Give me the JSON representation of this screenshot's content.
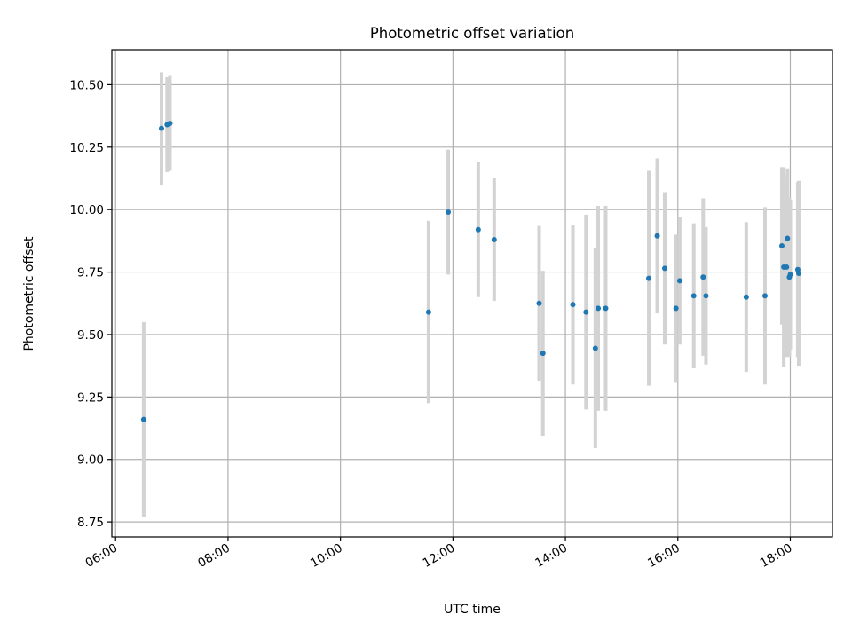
{
  "chart_data": {
    "type": "scatter",
    "title": "Photometric offset variation",
    "xlabel": "UTC time",
    "ylabel": "Photometric offset",
    "x_axis_type": "time",
    "xlim": [
      "05:56",
      "18:45"
    ],
    "ylim": [
      8.69,
      10.64
    ],
    "xticks": [
      "06:00",
      "08:00",
      "10:00",
      "12:00",
      "14:00",
      "16:00",
      "18:00"
    ],
    "yticks": [
      8.75,
      9.0,
      9.25,
      9.5,
      9.75,
      10.0,
      10.25,
      10.5
    ],
    "ytick_labels": [
      "8.75",
      "9.00",
      "9.25",
      "9.50",
      "9.75",
      "10.00",
      "10.25",
      "10.50"
    ],
    "grid": true,
    "marker_color": "#1f77b4",
    "errorbar_color": "#d3d3d3",
    "points": [
      {
        "t": "06:30",
        "y": 9.16,
        "err": 0.39
      },
      {
        "t": "06:49",
        "y": 10.325,
        "err": 0.225
      },
      {
        "t": "06:55",
        "y": 10.34,
        "err": 0.19
      },
      {
        "t": "06:58",
        "y": 10.345,
        "err": 0.19
      },
      {
        "t": "11:34",
        "y": 9.59,
        "err": 0.365
      },
      {
        "t": "11:55",
        "y": 9.99,
        "err": 0.25
      },
      {
        "t": "12:27",
        "y": 9.92,
        "err": 0.27
      },
      {
        "t": "12:44",
        "y": 9.88,
        "err": 0.245
      },
      {
        "t": "13:32",
        "y": 9.625,
        "err": 0.31
      },
      {
        "t": "13:36",
        "y": 9.425,
        "err": 0.33
      },
      {
        "t": "14:08",
        "y": 9.62,
        "err": 0.32
      },
      {
        "t": "14:22",
        "y": 9.59,
        "err": 0.39
      },
      {
        "t": "14:32",
        "y": 9.445,
        "err": 0.4
      },
      {
        "t": "14:35",
        "y": 9.605,
        "err": 0.41
      },
      {
        "t": "14:43",
        "y": 9.605,
        "err": 0.41
      },
      {
        "t": "15:29",
        "y": 9.725,
        "err": 0.43
      },
      {
        "t": "15:38",
        "y": 9.895,
        "err": 0.31
      },
      {
        "t": "15:46",
        "y": 9.765,
        "err": 0.305
      },
      {
        "t": "15:58",
        "y": 9.605,
        "err": 0.295
      },
      {
        "t": "16:02",
        "y": 9.715,
        "err": 0.255
      },
      {
        "t": "16:17",
        "y": 9.655,
        "err": 0.29
      },
      {
        "t": "16:27",
        "y": 9.73,
        "err": 0.315
      },
      {
        "t": "16:30",
        "y": 9.655,
        "err": 0.275
      },
      {
        "t": "17:13",
        "y": 9.65,
        "err": 0.3
      },
      {
        "t": "17:33",
        "y": 9.655,
        "err": 0.355
      },
      {
        "t": "17:51",
        "y": 9.855,
        "err": 0.315
      },
      {
        "t": "17:53",
        "y": 9.77,
        "err": 0.4
      },
      {
        "t": "17:56",
        "y": 9.77,
        "err": 0.36
      },
      {
        "t": "17:57",
        "y": 9.885,
        "err": 0.28
      },
      {
        "t": "17:59",
        "y": 9.73,
        "err": 0.32
      },
      {
        "t": "18:00",
        "y": 9.74,
        "err": 0.3
      },
      {
        "t": "18:08",
        "y": 9.76,
        "err": 0.35
      },
      {
        "t": "18:09",
        "y": 9.745,
        "err": 0.37
      }
    ]
  }
}
